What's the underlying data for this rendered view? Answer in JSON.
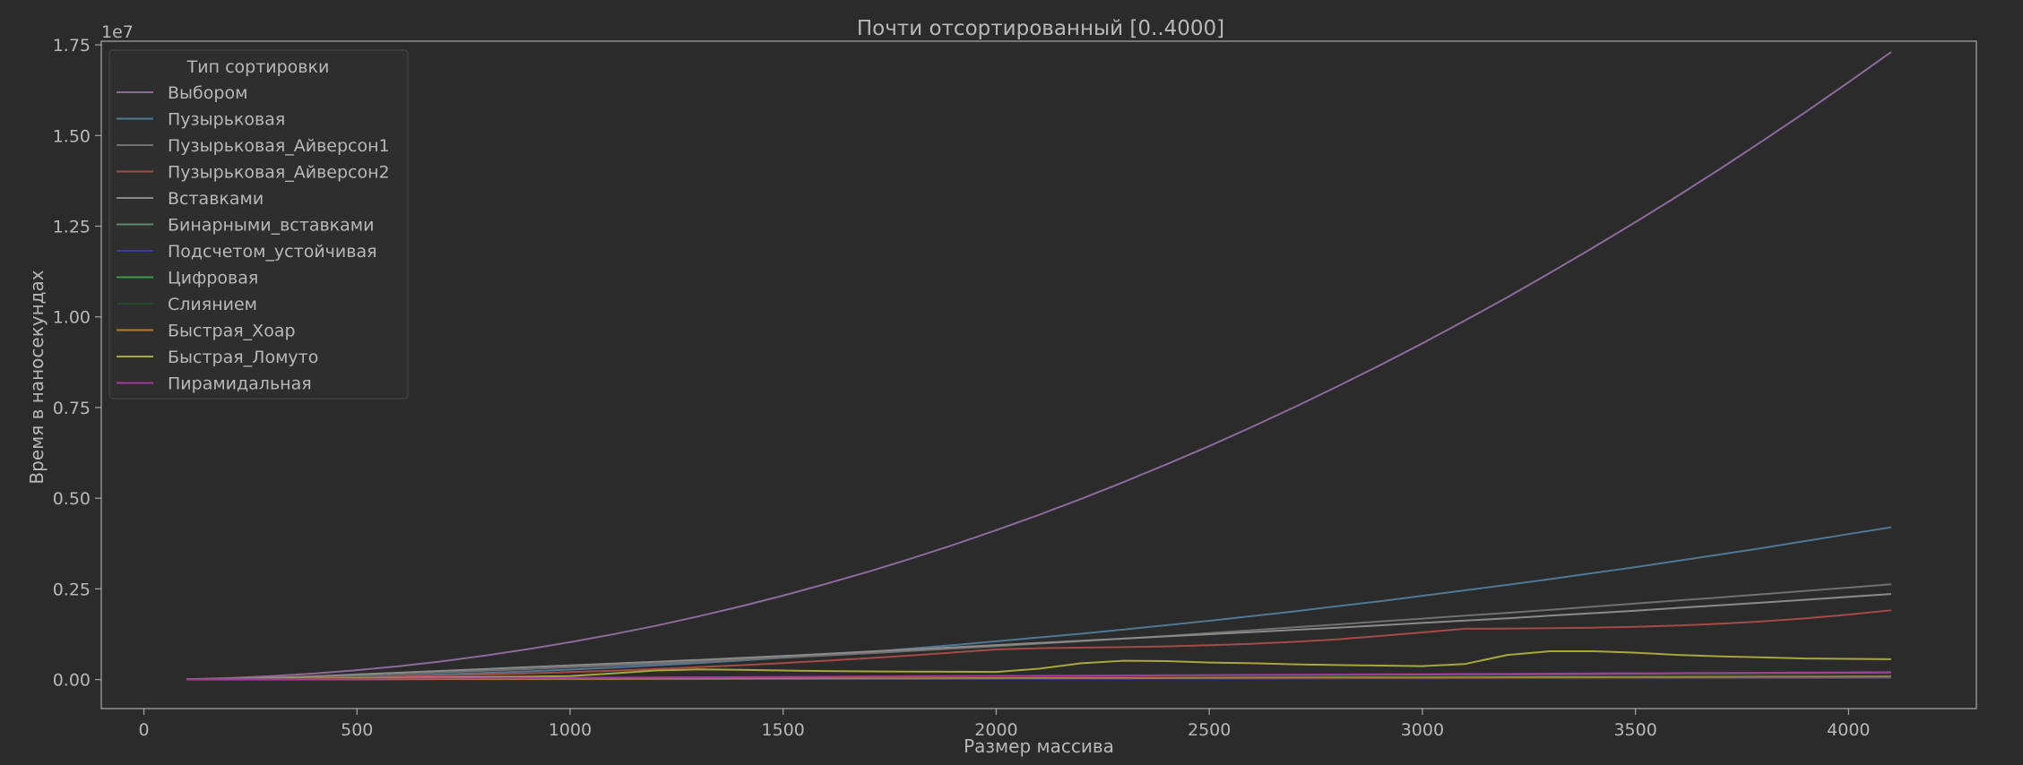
{
  "chart_data": {
    "type": "line",
    "title": "Почти отсортированный [0..4000]",
    "xlabel": "Размер массива",
    "ylabel": "Время в наносекундах",
    "y_multiplier_label": "1e7",
    "xlim": [
      -100,
      4300
    ],
    "ylim": [
      -800000,
      17600000
    ],
    "x_ticks": [
      0,
      500,
      1000,
      1500,
      2000,
      2500,
      3000,
      3500,
      4000
    ],
    "x_tick_labels": [
      "0",
      "500",
      "1000",
      "1500",
      "2000",
      "2500",
      "3000",
      "3500",
      "4000"
    ],
    "y_ticks": [
      0,
      2500000,
      5000000,
      7500000,
      10000000,
      12500000,
      15000000,
      17500000
    ],
    "y_tick_labels": [
      "0.00",
      "0.25",
      "0.50",
      "0.75",
      "1.00",
      "1.25",
      "1.50",
      "1.75"
    ],
    "grid": false,
    "legend_title": "Тип сортировки",
    "legend_position": "top-left",
    "x": [
      100,
      200,
      300,
      400,
      500,
      600,
      700,
      800,
      900,
      1000,
      1100,
      1200,
      1300,
      1400,
      1500,
      1600,
      1700,
      1800,
      1900,
      2000,
      2100,
      2200,
      2300,
      2400,
      2500,
      2600,
      2700,
      2800,
      2900,
      3000,
      3100,
      3200,
      3300,
      3400,
      3500,
      3600,
      3700,
      3800,
      3900,
      4000,
      4100
    ],
    "series": [
      {
        "name": "Выбором",
        "color": "#8c6a9c",
        "values": [
          10000,
          40000,
          95000,
          165000,
          260000,
          370000,
          505000,
          660000,
          835000,
          1030000,
          1245000,
          1480000,
          1740000,
          2015000,
          2315000,
          2635000,
          2975000,
          3335000,
          3715000,
          4120000,
          4540000,
          4985000,
          5450000,
          5935000,
          6440000,
          6965000,
          7510000,
          8080000,
          8665000,
          9270000,
          9900000,
          10545000,
          11215000,
          11905000,
          12610000,
          13340000,
          14090000,
          14865000,
          15655000,
          16470000,
          17300000
        ]
      },
      {
        "name": "Пузырьковая",
        "color": "#4f7896",
        "values": [
          5000,
          15000,
          30000,
          50000,
          75000,
          105000,
          140000,
          180000,
          225000,
          275000,
          330000,
          390000,
          455000,
          525000,
          600000,
          680000,
          765000,
          855000,
          950000,
          1055000,
          1160000,
          1265000,
          1380000,
          1500000,
          1620000,
          1750000,
          1880000,
          2020000,
          2160000,
          2310000,
          2460000,
          2610000,
          2770000,
          2935000,
          3100000,
          3275000,
          3450000,
          3630000,
          3820000,
          4010000,
          4200000
        ]
      },
      {
        "name": "Пузырьковая_Айверсон1",
        "color": "#707070",
        "values": [
          5000,
          20000,
          45000,
          80000,
          120000,
          160000,
          200000,
          245000,
          290000,
          340000,
          390000,
          440000,
          495000,
          550000,
          605000,
          665000,
          725000,
          790000,
          855000,
          920000,
          990000,
          1060000,
          1130000,
          1200000,
          1280000,
          1360000,
          1440000,
          1520000,
          1600000,
          1680000,
          1760000,
          1840000,
          1925000,
          2010000,
          2095000,
          2180000,
          2265000,
          2355000,
          2445000,
          2535000,
          2625000
        ]
      },
      {
        "name": "Пузырьковая_Айверсон2",
        "color": "#a64a46",
        "values": [
          3000,
          12000,
          25000,
          42000,
          62000,
          85000,
          110000,
          138000,
          170000,
          205000,
          245000,
          290000,
          340000,
          395000,
          455000,
          520000,
          590000,
          665000,
          745000,
          830000,
          865000,
          880000,
          895000,
          915000,
          945000,
          985000,
          1040000,
          1110000,
          1200000,
          1300000,
          1400000,
          1405000,
          1415000,
          1430000,
          1455000,
          1490000,
          1540000,
          1605000,
          1690000,
          1790000,
          1910000
        ]
      },
      {
        "name": "Вставками",
        "color": "#8a8a8a",
        "values": [
          5000,
          20000,
          50000,
          90000,
          140000,
          190000,
          240000,
          290000,
          340000,
          390000,
          440000,
          490000,
          540000,
          595000,
          650000,
          710000,
          770000,
          830000,
          890000,
          950000,
          1010000,
          1070000,
          1130000,
          1190000,
          1250000,
          1310000,
          1370000,
          1430000,
          1495000,
          1560000,
          1625000,
          1690000,
          1760000,
          1830000,
          1900000,
          1975000,
          2050000,
          2125000,
          2200000,
          2280000,
          2360000
        ]
      },
      {
        "name": "Бинарными_вставками",
        "color": "#5b8a6e",
        "values": [
          2000,
          4000,
          7000,
          10000,
          14000,
          18000,
          22000,
          27000,
          32000,
          37000,
          42000,
          47000,
          52000,
          57000,
          62000,
          67000,
          72000,
          77000,
          82000,
          87000,
          92000,
          97000,
          102000,
          107000,
          112000,
          117000,
          122000,
          127000,
          132000,
          137000,
          142000,
          147000,
          152000,
          157000,
          162000,
          167000,
          172000,
          177000,
          182000,
          187000,
          192000
        ]
      },
      {
        "name": "Подсчетом_устойчивая",
        "color": "#3b3e9a",
        "values": [
          1000,
          2000,
          3000,
          4000,
          5000,
          6000,
          7000,
          8000,
          9000,
          10000,
          11000,
          12000,
          13000,
          14000,
          15000,
          16000,
          17000,
          18000,
          19000,
          20000,
          21000,
          22000,
          23000,
          24000,
          25000,
          26000,
          27000,
          28000,
          29000,
          30000,
          31000,
          32000,
          33000,
          34000,
          35000,
          36000,
          37000,
          38000,
          39000,
          40000,
          41000
        ]
      },
      {
        "name": "Цифровая",
        "color": "#3c9a48",
        "values": [
          2000,
          4000,
          6000,
          8000,
          10000,
          12000,
          14000,
          16000,
          18000,
          20000,
          22000,
          24000,
          26000,
          28000,
          30000,
          32000,
          34000,
          36000,
          38000,
          40000,
          42000,
          44000,
          46000,
          48000,
          50000,
          52000,
          54000,
          56000,
          58000,
          60000,
          62000,
          64000,
          66000,
          68000,
          70000,
          72000,
          74000,
          76000,
          78000,
          80000,
          82000
        ]
      },
      {
        "name": "Слиянием",
        "color": "#1f4a2c",
        "values": [
          3000,
          6000,
          9000,
          12000,
          15000,
          18000,
          21000,
          24000,
          27000,
          30000,
          33000,
          36000,
          39000,
          42000,
          45000,
          48000,
          51000,
          54000,
          57000,
          60000,
          63000,
          66000,
          69000,
          72000,
          75000,
          78000,
          81000,
          84000,
          87000,
          90000,
          93000,
          96000,
          99000,
          102000,
          105000,
          108000,
          111000,
          114000,
          117000,
          120000,
          123000
        ]
      },
      {
        "name": "Быстрая_Хоар",
        "color": "#b07a34",
        "values": [
          2000,
          4000,
          6000,
          8000,
          10000,
          12000,
          14000,
          16000,
          18000,
          20000,
          22000,
          24000,
          26000,
          28000,
          30000,
          32000,
          34000,
          36000,
          38000,
          40000,
          42000,
          44000,
          46000,
          48000,
          50000,
          52000,
          54000,
          56000,
          58000,
          60000,
          62000,
          64000,
          66000,
          68000,
          70000,
          72000,
          74000,
          76000,
          78000,
          80000,
          82000
        ]
      },
      {
        "name": "Быстрая_Ломуто",
        "color": "#a8a838",
        "values": [
          5000,
          10000,
          20000,
          30000,
          40000,
          50000,
          60000,
          70000,
          80000,
          95000,
          170000,
          250000,
          280000,
          270000,
          250000,
          235000,
          225000,
          220000,
          215000,
          210000,
          300000,
          450000,
          520000,
          510000,
          470000,
          450000,
          420000,
          400000,
          385000,
          370000,
          430000,
          680000,
          780000,
          780000,
          740000,
          680000,
          640000,
          610000,
          580000,
          570000,
          560000
        ]
      },
      {
        "name": "Пирамидальная",
        "color": "#a43a9c",
        "values": [
          3000,
          8000,
          13000,
          18000,
          23000,
          28000,
          33000,
          38000,
          43000,
          48000,
          53000,
          58000,
          63000,
          68000,
          73000,
          78000,
          83000,
          88000,
          93000,
          98000,
          103000,
          108000,
          113000,
          118000,
          123000,
          128000,
          133000,
          138000,
          143000,
          148000,
          153000,
          158000,
          163000,
          168000,
          173000,
          178000,
          183000,
          188000,
          193000,
          198000,
          203000
        ]
      }
    ]
  }
}
